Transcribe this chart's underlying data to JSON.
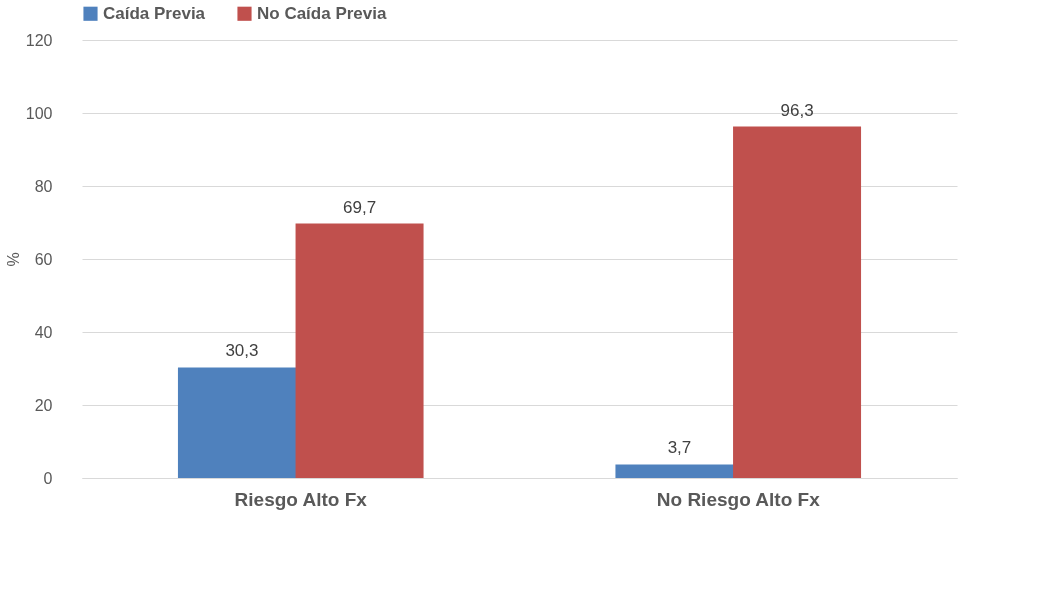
{
  "chart_data": {
    "type": "bar",
    "ylabel": "%",
    "categories": [
      "Riesgo Alto Fx",
      "No Riesgo Alto Fx"
    ],
    "series": [
      {
        "name": "Caída Previa",
        "color": "#4f81bd",
        "values": [
          30.3,
          3.7
        ],
        "value_labels": [
          "30,3",
          "3,7"
        ]
      },
      {
        "name": "No Caída Previa",
        "color": "#c0504d",
        "values": [
          69.7,
          96.3
        ],
        "value_labels": [
          "69,7",
          "96,3"
        ]
      }
    ],
    "ylim": [
      0,
      120
    ],
    "yticks": [
      0,
      20,
      40,
      60,
      80,
      100,
      120
    ],
    "grid": "y",
    "legend": "top"
  }
}
